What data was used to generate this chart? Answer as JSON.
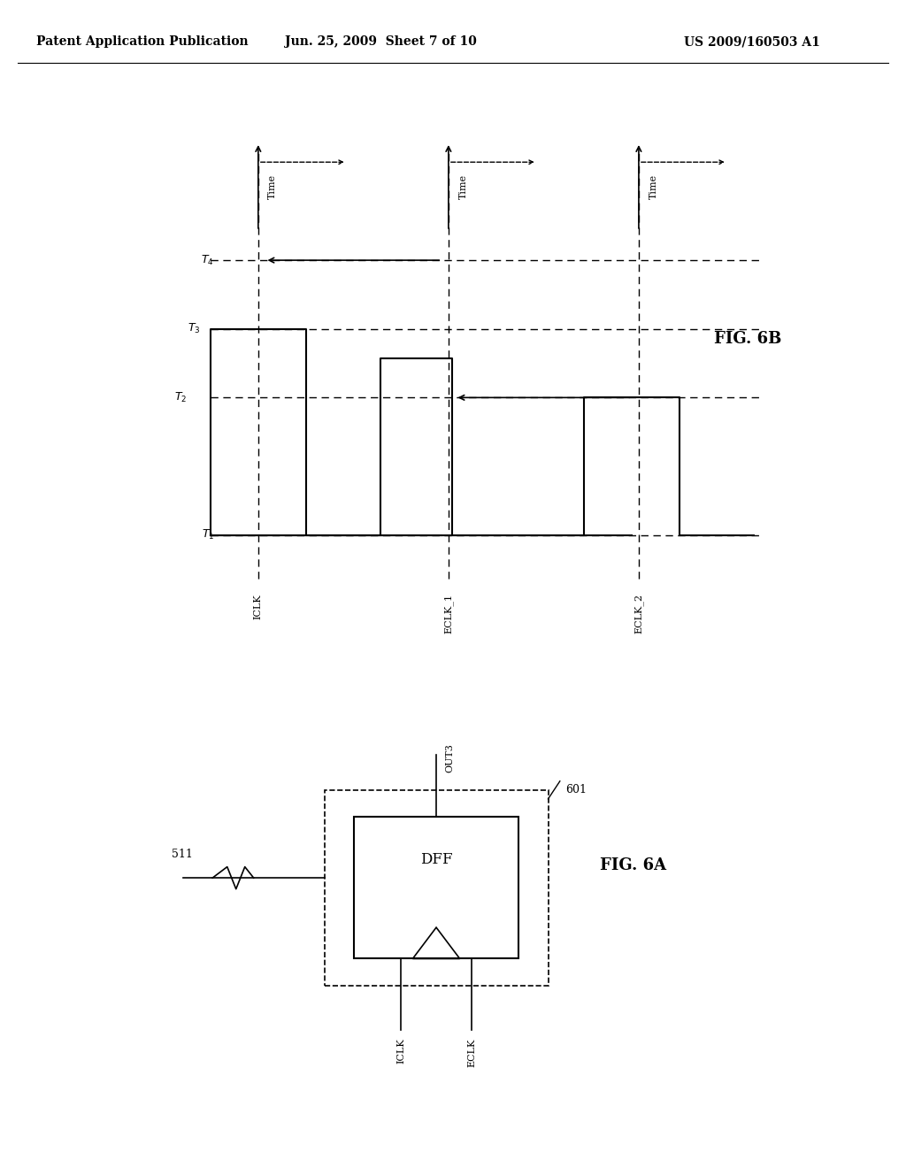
{
  "bg_color": "#ffffff",
  "header_left": "Patent Application Publication",
  "header_center": "Jun. 25, 2009  Sheet 7 of 10",
  "header_right": "US 2009/160503 A1",
  "fig6b_label": "FIG. 6B",
  "fig6a_label": "FIG. 6A",
  "lane_labels": [
    "ICLK",
    "ECLK_1",
    "ECLK_2"
  ],
  "T_labels": [
    "T₁",
    "T₂",
    "T₃",
    "T₄"
  ],
  "dff_text": "DFF",
  "ref_511": "511",
  "ref_601": "601",
  "out3": "OUT3",
  "iclk_dff": "ICLK",
  "eclk_dff": "ECLK",
  "time_label": "Time"
}
